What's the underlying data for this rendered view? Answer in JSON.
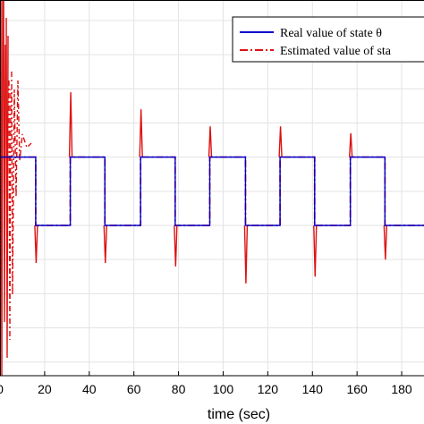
{
  "chart_data": {
    "type": "line",
    "title": "",
    "xlabel": "time (sec)",
    "ylabel": "",
    "xlim": [
      0,
      190
    ],
    "ylim": [
      -3.2,
      2.3
    ],
    "grid": true,
    "legend_position": "top-right",
    "x_ticks": [
      20,
      40,
      60,
      80,
      100,
      120,
      140,
      160,
      180
    ],
    "x_tick_labels": [
      "20",
      "40",
      "60",
      "80",
      "100",
      "120",
      "140",
      "160",
      "180"
    ],
    "y_ticks": [
      -3,
      -2.5,
      -2,
      -1.5,
      -1,
      -0.5,
      0,
      0.5,
      1,
      1.5,
      2
    ],
    "legend": [
      {
        "label": "Real value of state θ",
        "color": "#0000cc",
        "style": "solid"
      },
      {
        "label": "Estimated value of sta",
        "color": "#dd1111",
        "style": "dashdot"
      }
    ],
    "square_wave": {
      "high": 0,
      "low": -1,
      "transitions": [
        {
          "t": 0,
          "level": 0
        },
        {
          "t": 16,
          "level": -1
        },
        {
          "t": 31.5,
          "level": 0
        },
        {
          "t": 47,
          "level": -1
        },
        {
          "t": 63,
          "level": 0
        },
        {
          "t": 78.5,
          "level": -1
        },
        {
          "t": 94,
          "level": 0
        },
        {
          "t": 110,
          "level": -1
        },
        {
          "t": 125.5,
          "level": 0
        },
        {
          "t": 141,
          "level": -1
        },
        {
          "t": 157,
          "level": 0
        },
        {
          "t": 172.5,
          "level": -1
        }
      ]
    },
    "spikes": [
      {
        "t": 16,
        "peak": -1.55
      },
      {
        "t": 31.5,
        "peak": 0.95
      },
      {
        "t": 47,
        "peak": -1.55
      },
      {
        "t": 63,
        "peak": 0.7
      },
      {
        "t": 78.5,
        "peak": -1.6
      },
      {
        "t": 94,
        "peak": 0.45
      },
      {
        "t": 110,
        "peak": -1.85
      },
      {
        "t": 125.5,
        "peak": 0.45
      },
      {
        "t": 141,
        "peak": -1.75
      },
      {
        "t": 157,
        "peak": 0.35
      },
      {
        "t": 172.5,
        "peak": -1.5
      }
    ]
  }
}
